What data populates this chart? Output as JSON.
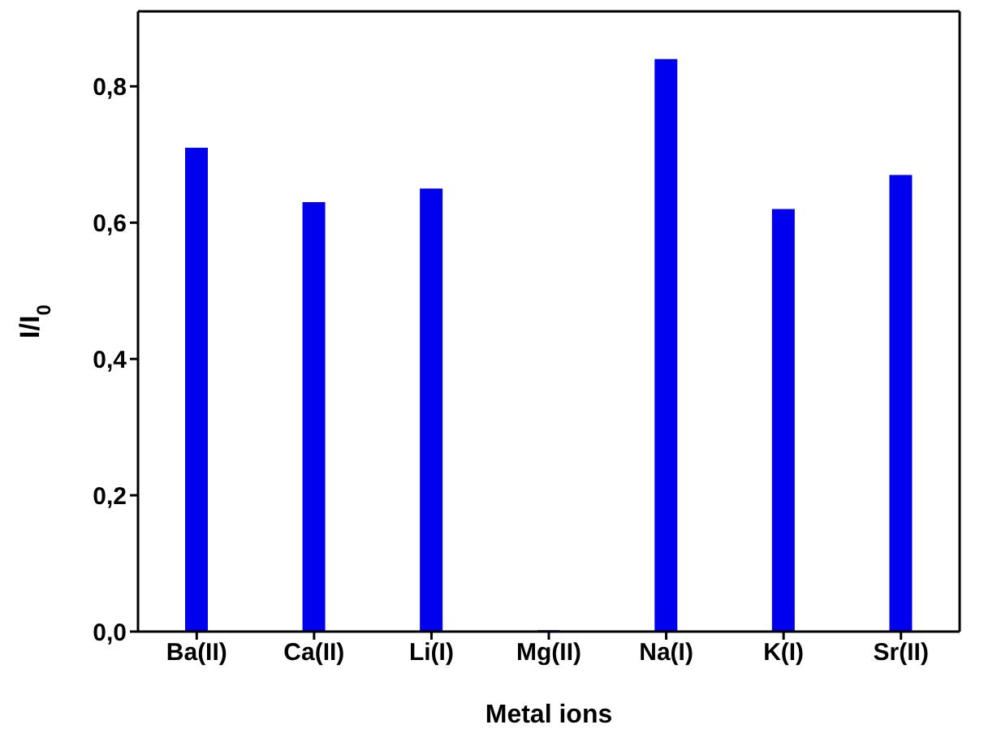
{
  "chart_data": {
    "type": "bar",
    "xlabel": "Metal ions",
    "ylabel": "I/I$_{0}$",
    "categories": [
      "Ba(II)",
      "Ca(II)",
      "Li(I)",
      "Mg(II)",
      "Na(I)",
      "K(I)",
      "Sr(II)"
    ],
    "values": [
      0.71,
      0.63,
      0.65,
      0.002,
      0.84,
      0.62,
      0.67
    ],
    "color": "#0000ee",
    "ylim": [
      0,
      0.91
    ],
    "yticks": [
      {
        "value": 0,
        "label": "0,0"
      },
      {
        "value": 0.2,
        "label": "0,2"
      },
      {
        "value": 0.4,
        "label": "0,4"
      },
      {
        "value": 0.6,
        "label": "0,6"
      },
      {
        "value": 0.8,
        "label": "0,8"
      }
    ],
    "grid": false
  }
}
